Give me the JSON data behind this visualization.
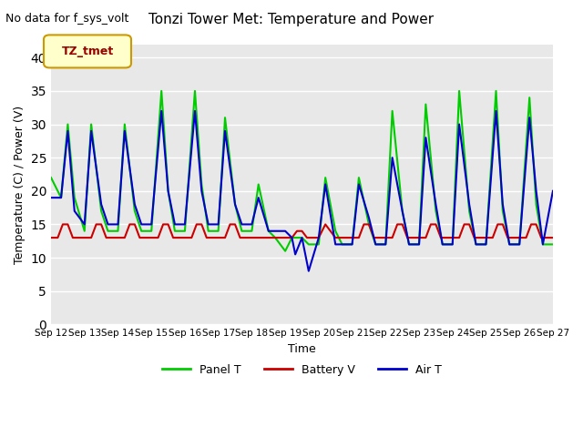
{
  "title": "Tonzi Tower Met: Temperature and Power",
  "xlabel": "Time",
  "ylabel": "Temperature (C) / Power (V)",
  "top_label": "No data for f_sys_volt",
  "legend_label": "TZ_tmet",
  "ylim": [
    0,
    42
  ],
  "yticks": [
    0,
    5,
    10,
    15,
    20,
    25,
    30,
    35,
    40
  ],
  "bg_color": "#e8e8e8",
  "fig_color": "#ffffff",
  "grid_color": "#ffffff",
  "panel_t_color": "#00cc00",
  "battery_v_color": "#cc0000",
  "air_t_color": "#0000cc",
  "legend_box_color": "#ffffcc",
  "legend_box_edge": "#cc9900",
  "legend_text_color": "#990000",
  "x_days": [
    12,
    13,
    14,
    15,
    16,
    17,
    18,
    19,
    20,
    21,
    22,
    23,
    24,
    25,
    26,
    27
  ],
  "panel_t_x": [
    12.0,
    12.3,
    12.5,
    12.7,
    13.0,
    13.2,
    13.5,
    13.7,
    14.0,
    14.2,
    14.5,
    14.7,
    15.0,
    15.3,
    15.5,
    15.7,
    16.0,
    16.3,
    16.5,
    16.7,
    17.0,
    17.2,
    17.5,
    17.7,
    18.0,
    18.2,
    18.5,
    18.7,
    19.0,
    19.2,
    19.5,
    19.7,
    20.0,
    20.2,
    20.5,
    20.7,
    21.0,
    21.2,
    21.5,
    21.7,
    22.0,
    22.2,
    22.5,
    22.7,
    23.0,
    23.2,
    23.5,
    23.7,
    24.0,
    24.2,
    24.5,
    24.7,
    25.0,
    25.3,
    25.5,
    25.7,
    26.0,
    26.3,
    26.5,
    26.7,
    27.0
  ],
  "panel_t_y": [
    22,
    19,
    30,
    19,
    14,
    30,
    17,
    14,
    14,
    30,
    17,
    14,
    14,
    35,
    20,
    14,
    14,
    35,
    21,
    14,
    14,
    31,
    18,
    14,
    14,
    21,
    14,
    13,
    11,
    13,
    13,
    12,
    12,
    22,
    14,
    12,
    12,
    22,
    15,
    12,
    12,
    32,
    17,
    12,
    12,
    33,
    17,
    12,
    12,
    35,
    17,
    12,
    12,
    35,
    17,
    12,
    12,
    34,
    18,
    12,
    12
  ],
  "battery_v_x": [
    12.0,
    12.2,
    12.35,
    12.5,
    12.65,
    12.8,
    13.0,
    13.2,
    13.35,
    13.5,
    13.65,
    13.8,
    14.0,
    14.2,
    14.35,
    14.5,
    14.65,
    14.8,
    15.0,
    15.2,
    15.35,
    15.5,
    15.65,
    15.8,
    16.0,
    16.2,
    16.35,
    16.5,
    16.65,
    16.8,
    17.0,
    17.2,
    17.35,
    17.5,
    17.65,
    17.8,
    18.0,
    18.2,
    18.35,
    18.5,
    18.65,
    18.8,
    19.0,
    19.2,
    19.35,
    19.5,
    19.65,
    19.8,
    20.0,
    20.2,
    20.5,
    20.7,
    21.0,
    21.2,
    21.35,
    21.5,
    21.65,
    21.8,
    22.0,
    22.2,
    22.35,
    22.5,
    22.65,
    22.8,
    23.0,
    23.2,
    23.35,
    23.5,
    23.65,
    23.8,
    24.0,
    24.2,
    24.35,
    24.5,
    24.65,
    24.8,
    25.0,
    25.2,
    25.35,
    25.5,
    25.65,
    25.8,
    26.0,
    26.2,
    26.35,
    26.5,
    26.65,
    26.8,
    27.0
  ],
  "battery_v_y": [
    13,
    13,
    15,
    15,
    13,
    13,
    13,
    13,
    15,
    15,
    13,
    13,
    13,
    13,
    15,
    15,
    13,
    13,
    13,
    13,
    15,
    15,
    13,
    13,
    13,
    13,
    15,
    15,
    13,
    13,
    13,
    13,
    15,
    15,
    13,
    13,
    13,
    13,
    13,
    13,
    13,
    13,
    13,
    13,
    14,
    14,
    13,
    13,
    13,
    15,
    13,
    13,
    13,
    13,
    15,
    15,
    13,
    13,
    13,
    13,
    15,
    15,
    13,
    13,
    13,
    13,
    15,
    15,
    13,
    13,
    13,
    13,
    15,
    15,
    13,
    13,
    13,
    13,
    15,
    15,
    13,
    13,
    13,
    13,
    15,
    15,
    13,
    13,
    13
  ],
  "air_t_x": [
    12.0,
    12.3,
    12.5,
    12.7,
    13.0,
    13.2,
    13.5,
    13.7,
    14.0,
    14.2,
    14.5,
    14.7,
    15.0,
    15.3,
    15.5,
    15.7,
    16.0,
    16.3,
    16.5,
    16.7,
    17.0,
    17.2,
    17.5,
    17.7,
    18.0,
    18.2,
    18.5,
    18.7,
    19.0,
    19.2,
    19.3,
    19.5,
    19.7,
    20.0,
    20.2,
    20.5,
    20.7,
    21.0,
    21.2,
    21.5,
    21.7,
    22.0,
    22.2,
    22.5,
    22.7,
    23.0,
    23.2,
    23.5,
    23.7,
    24.0,
    24.2,
    24.5,
    24.7,
    25.0,
    25.3,
    25.5,
    25.7,
    26.0,
    26.3,
    26.5,
    26.7,
    27.0
  ],
  "air_t_y": [
    19,
    19,
    29,
    17,
    15,
    29,
    18,
    15,
    15,
    29,
    18,
    15,
    15,
    32,
    20,
    15,
    15,
    32,
    20,
    15,
    15,
    29,
    18,
    15,
    15,
    19,
    14,
    14,
    14,
    13,
    10.5,
    13,
    8,
    13,
    21,
    12,
    12,
    12,
    21,
    16,
    12,
    12,
    25,
    17,
    12,
    12,
    28,
    18,
    12,
    12,
    30,
    18,
    12,
    12,
    32,
    18,
    12,
    12,
    31,
    20,
    12,
    20
  ]
}
